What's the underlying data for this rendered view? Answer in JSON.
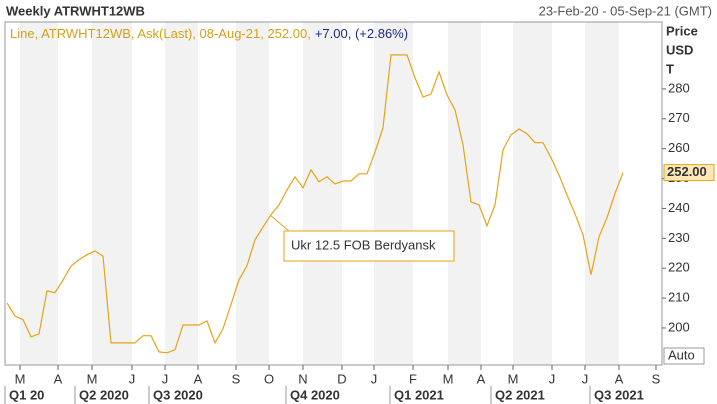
{
  "chart_data": {
    "type": "line",
    "title": "Weekly ATRWHT12WB",
    "date_range": "23-Feb-20 - 05-Sep-21 (GMT)",
    "legend_text": "Line, ATRWHT12WB, Ask(Last), 08-Aug-21, 252.00,",
    "legend_change": "+7.00, (+2.86%)",
    "axis_label": [
      "Price",
      "USD",
      "T"
    ],
    "last_label": "252.00",
    "scale_mode": "Auto",
    "annotation": "Ukr 12.5 FOB Berdyansk",
    "months": [
      "M",
      "A",
      "M",
      "J",
      "J",
      "A",
      "S",
      "O",
      "N",
      "D",
      "J",
      "F",
      "M",
      "A",
      "M",
      "J",
      "J",
      "A",
      "S"
    ],
    "quarters": [
      "Q1 20",
      "Q2 2020",
      "Q3 2020",
      "Q4 2020",
      "Q1 2021",
      "Q2 2021",
      "Q3 2021"
    ],
    "series": [
      {
        "name": "ATRWHT12WB",
        "color": "#e8a317",
        "values": [
          208.4,
          204,
          202.8,
          197,
          198,
          212.4,
          211.8,
          216,
          220.7,
          222.8,
          224.5,
          225.8,
          224,
          195,
          195,
          195,
          195,
          197.4,
          197.4,
          192,
          191.7,
          192.7,
          201,
          201,
          201,
          202.4,
          195,
          199.7,
          207.8,
          216.1,
          220.8,
          229.5,
          233.8,
          237.9,
          241.2,
          246.2,
          250.6,
          246.9,
          252.9,
          248.9,
          250.6,
          248.2,
          249.2,
          249.2,
          251.6,
          251.6,
          258.9,
          267,
          291.4,
          291.4,
          291.4,
          283.7,
          277.3,
          278.3,
          285.7,
          278,
          273,
          261.3,
          242.2,
          241.2,
          234.2,
          241.2,
          259.6,
          264.6,
          266.6,
          265,
          262,
          262,
          257,
          251.2,
          244.5,
          238.2,
          231.2,
          217.8,
          230.5,
          236.9,
          245,
          252
        ]
      }
    ],
    "ylim": [
      187.6,
      302.4
    ],
    "yticks": [
      200,
      210,
      220,
      230,
      240,
      250,
      260,
      270,
      280
    ],
    "grid": false
  }
}
